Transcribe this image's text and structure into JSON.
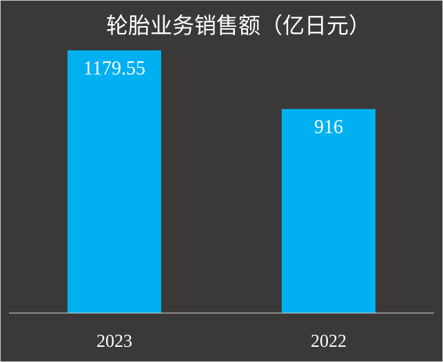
{
  "chart_data": {
    "type": "bar",
    "title": "轮胎业务销售额（亿日元）",
    "categories": [
      "2023",
      "2022"
    ],
    "values": [
      1179.55,
      916
    ],
    "value_labels": [
      "1179.55",
      "916"
    ],
    "ylim": [
      0,
      1300
    ],
    "grid": false,
    "legend": "none",
    "bar_color": "#00b0f0",
    "background_color": "#3b3937",
    "text_color": "#ffffff",
    "axis_color": "#d9d9d9"
  }
}
